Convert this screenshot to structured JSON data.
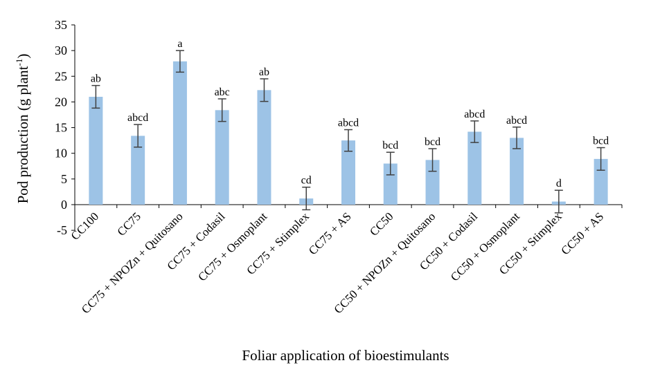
{
  "chart_data": {
    "type": "bar",
    "title": "",
    "xlabel": "Foliar application of bioestimulants",
    "ylabel": "Pod production (g plant",
    "ylabel_superscript": "-1",
    "ylabel_close": ")",
    "ylim": [
      -5,
      35
    ],
    "yticks": [
      -5,
      0,
      5,
      10,
      15,
      20,
      25,
      30,
      35
    ],
    "ytick_labels": [
      "-5",
      "0",
      "5",
      "10",
      "15",
      "20",
      "25",
      "30",
      "35"
    ],
    "grid": false,
    "legend": "none",
    "bar_color": "#9dc3e6",
    "error_bar_color": "#404040",
    "categories": [
      "CC100",
      "CC75",
      "CC75 + NPOZn + Quitosano",
      "CC75 + Codasil",
      "CC75 + Osmoplant",
      "CC75 + Stimplex",
      "CC75 + AS",
      "CC50",
      "CC50 + NPOZn + Quitosano",
      "CC50 + Codasil",
      "CC50 + Osmoplant",
      "CC50 + Stimplex",
      "CC50 + AS"
    ],
    "values": [
      21.0,
      13.4,
      27.9,
      18.4,
      22.3,
      1.2,
      12.5,
      8.0,
      8.7,
      14.2,
      13.0,
      0.6,
      8.9
    ],
    "errors": [
      2.2,
      2.2,
      2.1,
      2.2,
      2.2,
      2.2,
      2.1,
      2.2,
      2.2,
      2.1,
      2.1,
      2.2,
      2.2
    ],
    "significance_labels": [
      "ab",
      "abcd",
      "a",
      "abc",
      "ab",
      "cd",
      "abcd",
      "bcd",
      "bcd",
      "abcd",
      "abcd",
      "d",
      "bcd"
    ]
  }
}
